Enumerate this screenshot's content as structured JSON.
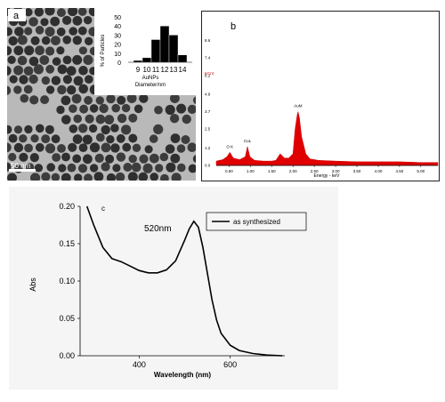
{
  "panels": {
    "a": {
      "label": "a",
      "scale_bar": "50 nm",
      "histogram": {
        "ylabel": "% of Particles",
        "yticks": [
          "0",
          "10",
          "20",
          "30",
          "40",
          "50"
        ],
        "xticks": [
          "9",
          "10",
          "11",
          "12",
          "13",
          "14"
        ],
        "xlabel_line1": "AuNPs",
        "xlabel_line2": "Diameter/nm"
      }
    },
    "b": {
      "label": "b",
      "yticks": [
        "0.0",
        "1.2",
        "2.5",
        "3.7",
        "4.9",
        "6.2",
        "7.4",
        "8.6"
      ],
      "y_unit": "KCnt",
      "xticks": [
        "0.50",
        "1.00",
        "1.50",
        "2.00",
        "2.50",
        "3.00",
        "3.50",
        "4.00",
        "4.50",
        "5.00"
      ],
      "xlabel": "Energy - keV",
      "peaks": [
        {
          "label": "O K",
          "energy": 0.52
        },
        {
          "label": "CuL",
          "energy": 0.93
        },
        {
          "label": "AuM",
          "energy": 2.12
        }
      ]
    },
    "c": {
      "label": "c",
      "yticks": [
        "0.00",
        "0.05",
        "0.10",
        "0.15",
        "0.20"
      ],
      "xticks": [
        "400",
        "600"
      ],
      "xlabel": "Wavelength (nm)",
      "ylabel": "Abs",
      "peak_label": "520nm"
    }
  },
  "chart_data": [
    {
      "type": "bar",
      "categories": [
        "9",
        "10",
        "11",
        "12",
        "13",
        "14"
      ],
      "values": [
        2,
        5,
        25,
        40,
        30,
        8
      ],
      "xlabel": "AuNPs Diameter/nm",
      "ylabel": "% of Particles",
      "ylim": [
        0,
        50
      ]
    },
    {
      "type": "area",
      "xlabel": "Energy - keV",
      "ylabel": "KCnt",
      "xlim": [
        0.2,
        5.4
      ],
      "ylim": [
        0,
        9.8
      ],
      "color": "#e00000",
      "x": [
        0.2,
        0.35,
        0.45,
        0.52,
        0.6,
        0.75,
        0.88,
        0.93,
        0.99,
        1.1,
        1.3,
        1.5,
        1.6,
        1.7,
        1.8,
        1.9,
        2.0,
        2.05,
        2.1,
        2.12,
        2.15,
        2.2,
        2.3,
        2.4,
        2.6,
        3.0,
        3.5,
        4.0,
        4.5,
        5.0,
        5.4
      ],
      "y": [
        0.3,
        0.4,
        0.6,
        0.9,
        0.5,
        0.4,
        0.6,
        1.3,
        0.6,
        0.35,
        0.3,
        0.3,
        0.35,
        0.8,
        0.5,
        0.5,
        0.8,
        2.5,
        3.5,
        3.7,
        3.3,
        2.0,
        0.8,
        0.45,
        0.35,
        0.3,
        0.25,
        0.25,
        0.25,
        0.2,
        0.2
      ]
    },
    {
      "type": "line",
      "title": "",
      "xlabel": "Wavelength (nm)",
      "ylabel": "Abs",
      "xlim": [
        270,
        720
      ],
      "ylim": [
        0,
        0.2
      ],
      "series": [
        {
          "name": "as synthesized",
          "x": [
            285,
            300,
            320,
            340,
            360,
            380,
            400,
            420,
            440,
            460,
            480,
            500,
            510,
            520,
            530,
            540,
            550,
            560,
            570,
            580,
            600,
            620,
            650,
            680,
            715
          ],
          "y": [
            0.2,
            0.175,
            0.145,
            0.13,
            0.126,
            0.12,
            0.114,
            0.111,
            0.111,
            0.115,
            0.127,
            0.155,
            0.17,
            0.18,
            0.172,
            0.145,
            0.11,
            0.075,
            0.048,
            0.03,
            0.014,
            0.007,
            0.003,
            0.001,
            0.0
          ]
        }
      ]
    }
  ]
}
